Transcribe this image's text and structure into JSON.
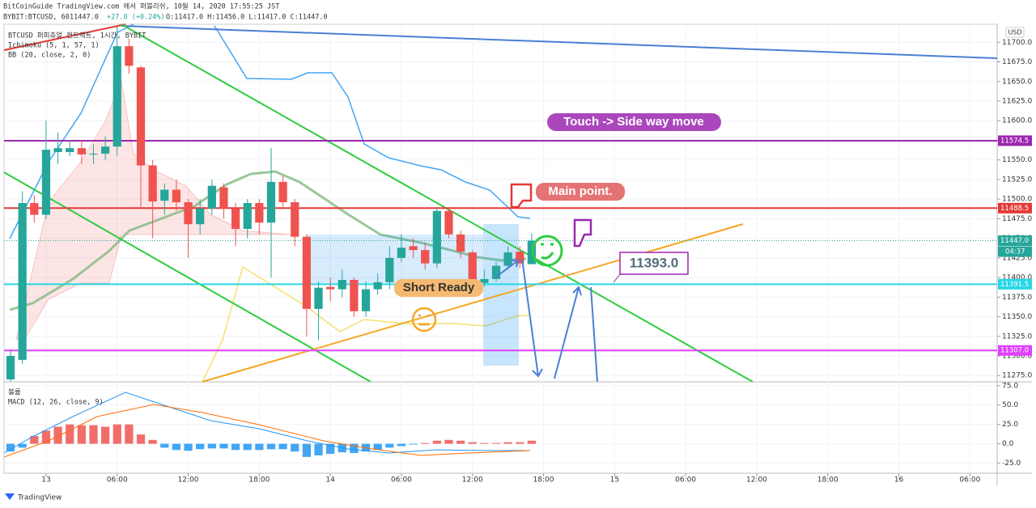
{
  "header": {
    "publisher": "BitCoinGuide TradingView.com 에서 퍼블리쉬, 10월 14, 2020 17:55:25 JST",
    "symbol": "BYBIT:BTCUSD, 60",
    "last": "11447.0",
    "change": "+27.0 (+0.24%)",
    "ohlc": "O:11417.0 H:11456.0 L:11417.0 C:11447.0"
  },
  "chart_data": {
    "type": "candlestick",
    "title": "BTCUSD 퍼피츄얼 컨트랙트, 1시간, BYBIT",
    "indicators": [
      "Ichimoku (5, 1, 57, 1)",
      "BB (20, close, 2, 0)"
    ],
    "currency": "USD",
    "up_color": "#26a69a",
    "down_color": "#ef5350",
    "x": [
      -3,
      -2,
      -1,
      0,
      1,
      2,
      3,
      4,
      5,
      6,
      7,
      8,
      9,
      10,
      11,
      12,
      13,
      14,
      15,
      16,
      17,
      18,
      19,
      20,
      21,
      22,
      23,
      24,
      25,
      26,
      27,
      28,
      29,
      30,
      31,
      32,
      33,
      34,
      35,
      36,
      37,
      38,
      39,
      40,
      41
    ],
    "open": [
      11270,
      11295,
      11495,
      11480,
      11560,
      11560,
      11565,
      11557,
      11558,
      11567,
      11695,
      11668,
      11543,
      11498,
      11512,
      11496,
      11468,
      11488,
      11515,
      11488,
      11462,
      11495,
      11470,
      11522,
      11496,
      11452,
      11360,
      11388,
      11385,
      11397,
      11357,
      11385,
      11394,
      11425,
      11440,
      11435,
      11418,
      11485,
      11455,
      11432,
      11393,
      11398,
      11415,
      11433,
      11417
    ],
    "high": [
      11307,
      11510,
      11505,
      11600,
      11585,
      11575,
      11575,
      11570,
      11580,
      11720,
      11705,
      11670,
      11550,
      11520,
      11525,
      11500,
      11500,
      11525,
      11520,
      11495,
      11500,
      11500,
      11565,
      11530,
      11500,
      11455,
      11395,
      11400,
      11410,
      11400,
      11395,
      11405,
      11440,
      11455,
      11450,
      11445,
      11490,
      11490,
      11460,
      11435,
      11410,
      11420,
      11440,
      11440,
      11456
    ],
    "low": [
      11267,
      11290,
      11470,
      11475,
      11545,
      11555,
      11545,
      11545,
      11550,
      11555,
      11660,
      11490,
      11450,
      11480,
      11485,
      11425,
      11455,
      11480,
      11475,
      11440,
      11450,
      11455,
      11400,
      11490,
      11440,
      11325,
      11320,
      11370,
      11375,
      11350,
      11350,
      11378,
      11385,
      11420,
      11425,
      11410,
      11412,
      11450,
      11425,
      11385,
      11388,
      11395,
      11410,
      11412,
      11417
    ],
    "close": [
      11300,
      11495,
      11480,
      11563,
      11565,
      11565,
      11557,
      11558,
      11567,
      11695,
      11670,
      11543,
      11497,
      11512,
      11496,
      11468,
      11488,
      11517,
      11488,
      11462,
      11495,
      11470,
      11522,
      11496,
      11452,
      11360,
      11387,
      11385,
      11397,
      11357,
      11385,
      11394,
      11425,
      11438,
      11435,
      11418,
      11485,
      11455,
      11433,
      11393,
      11398,
      11415,
      11432,
      11418,
      11447
    ],
    "xlim": [
      -3.55,
      80.3
    ],
    "xticks": [
      {
        "value": 0,
        "label": "13"
      },
      {
        "value": 6,
        "label": "06:00"
      },
      {
        "value": 12,
        "label": "12:00"
      },
      {
        "value": 18,
        "label": "18:00"
      },
      {
        "value": 24,
        "label": "14"
      },
      {
        "value": 30,
        "label": "06:00"
      },
      {
        "value": 36,
        "label": "12:00"
      },
      {
        "value": 42,
        "label": "18:00"
      },
      {
        "value": 48,
        "label": "15"
      },
      {
        "value": 54,
        "label": "06:00"
      },
      {
        "value": 60,
        "label": "12:00"
      },
      {
        "value": 66,
        "label": "18:00"
      },
      {
        "value": 72,
        "label": "16"
      },
      {
        "value": 78,
        "label": "06:00"
      }
    ],
    "ylim": [
      11267,
      11723
    ],
    "yticks": [
      {
        "value": 11275,
        "label": "11275.0"
      },
      {
        "value": 11300,
        "label": "11300.0"
      },
      {
        "value": 11325,
        "label": "11325.0"
      },
      {
        "value": 11350,
        "label": "11350.0"
      },
      {
        "value": 11375,
        "label": "11375.0"
      },
      {
        "value": 11400,
        "label": "11400.0"
      },
      {
        "value": 11425,
        "label": "11425.0"
      },
      {
        "value": 11450,
        "label": "11450.0"
      },
      {
        "value": 11475,
        "label": "11475.0"
      },
      {
        "value": 11500,
        "label": "11500.0"
      },
      {
        "value": 11525,
        "label": "11525.0"
      },
      {
        "value": 11550,
        "label": "11550.0"
      },
      {
        "value": 11575,
        "label": "11575.0"
      },
      {
        "value": 11600,
        "label": "11600.0"
      },
      {
        "value": 11625,
        "label": "11625.0"
      },
      {
        "value": 11650,
        "label": "11650.0"
      },
      {
        "value": 11675,
        "label": "11675.0"
      },
      {
        "value": 11700,
        "label": "11700.0"
      }
    ],
    "levels": [
      {
        "value": 11574.5,
        "color": "#9c27b0"
      },
      {
        "value": 11488.5,
        "color": "#e53935"
      },
      {
        "value": 11391.5,
        "color": "#26d7e6"
      },
      {
        "value": 11307.0,
        "label": "11307.0",
        "color": "#e040fb"
      }
    ],
    "last_price": {
      "value": 11447.0,
      "label": "11447.0",
      "color": "#26a69a"
    },
    "countdown": "04:37",
    "annotations": [
      {
        "text": "Touch -> Side way move"
      },
      {
        "text": "Main point."
      },
      {
        "value": 11393.0,
        "label": "11393.0"
      },
      {
        "text": "Short Ready"
      }
    ],
    "volume_label": "볼륨",
    "macd": {
      "title": "MACD (12, 26, close, 9)",
      "values": [
        -10,
        -5,
        10,
        17,
        22,
        25,
        24,
        24,
        22,
        25,
        25,
        12,
        5,
        -5,
        -8,
        -9,
        -7,
        -6,
        -6,
        -8,
        -8,
        -8,
        -7,
        -7,
        -10,
        -17,
        -15,
        -13,
        -11,
        -12,
        -10,
        -8,
        -5,
        -3,
        -1,
        1,
        4,
        5,
        4,
        2,
        1,
        1,
        2,
        2,
        4
      ],
      "pos_color": "#ef5350",
      "neg_color": "#2196f3",
      "ylim": [
        -38,
        80
      ],
      "yticks": [
        {
          "value": 75,
          "label": "75.0"
        },
        {
          "value": 50,
          "label": "50.0"
        },
        {
          "value": 25,
          "label": "25.0"
        },
        {
          "value": 0,
          "label": "0.0"
        },
        {
          "value": -25,
          "label": "-25.0"
        }
      ]
    },
    "brand": "TradingView"
  }
}
